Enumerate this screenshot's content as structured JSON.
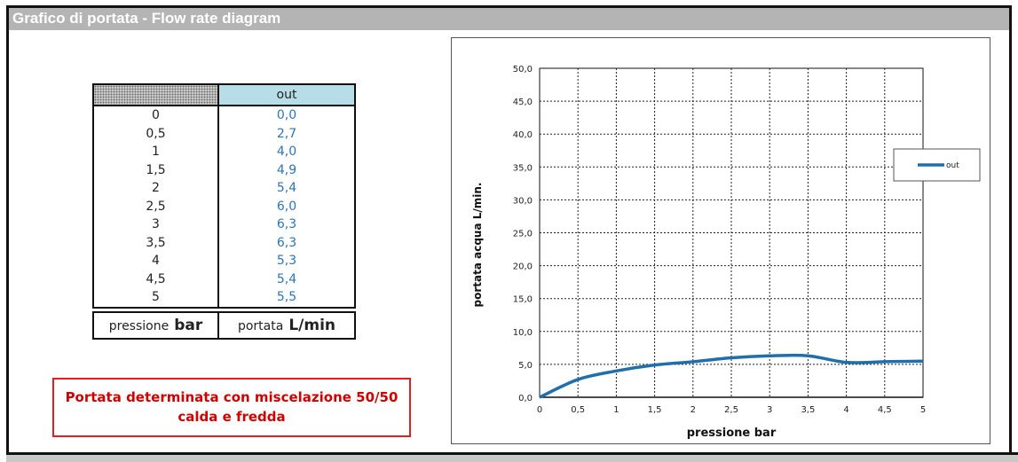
{
  "header": {
    "title": "Grafico di portata - Flow rate diagram"
  },
  "table": {
    "column_header": "out",
    "rows": [
      {
        "p": "0",
        "q": "0,0"
      },
      {
        "p": "0,5",
        "q": "2,7"
      },
      {
        "p": "1",
        "q": "4,0"
      },
      {
        "p": "1,5",
        "q": "4,9"
      },
      {
        "p": "2",
        "q": "5,4"
      },
      {
        "p": "2,5",
        "q": "6,0"
      },
      {
        "p": "3",
        "q": "6,3"
      },
      {
        "p": "3,5",
        "q": "6,3"
      },
      {
        "p": "4",
        "q": "5,3"
      },
      {
        "p": "4,5",
        "q": "5,4"
      },
      {
        "p": "5",
        "q": "5,5"
      }
    ],
    "footer_left_label": "pressione",
    "footer_left_unit": "bar",
    "footer_right_label": "portata",
    "footer_right_unit": "L/min"
  },
  "note": {
    "line1": "Portata determinata con miscelazione 50/50",
    "line2": "calda e fredda"
  },
  "chart_data": {
    "type": "line",
    "xlabel": "pressione bar",
    "ylabel": "portata acqua  L/min.",
    "xlim": [
      0,
      5
    ],
    "ylim": [
      0,
      50
    ],
    "x_ticks": [
      "0",
      "0,5",
      "1",
      "1,5",
      "2",
      "2,5",
      "3",
      "3,5",
      "4",
      "4,5",
      "5"
    ],
    "y_ticks": [
      "0,0",
      "5,0",
      "10,0",
      "15,0",
      "20,0",
      "25,0",
      "30,0",
      "35,0",
      "40,0",
      "45,0",
      "50,0"
    ],
    "grid": true,
    "smooth": true,
    "legend": "right",
    "series": [
      {
        "name": "out",
        "color": "#1f6fad",
        "x": [
          0,
          0.5,
          1,
          1.5,
          2,
          2.5,
          3,
          3.5,
          4,
          4.5,
          5
        ],
        "y": [
          0,
          2.7,
          4.0,
          4.9,
          5.4,
          6.0,
          6.3,
          6.3,
          5.3,
          5.4,
          5.5
        ]
      }
    ]
  }
}
